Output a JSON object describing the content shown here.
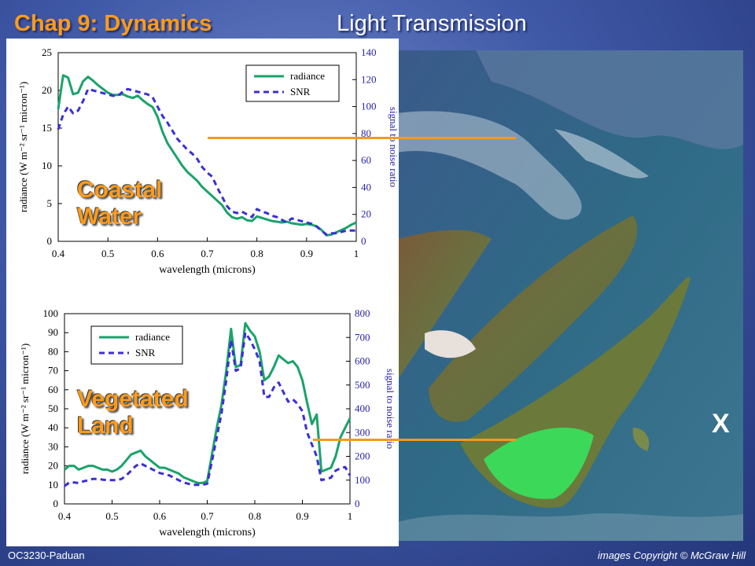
{
  "slide": {
    "title": "Chap 9: Dynamics",
    "subtitle": "Light Transmission",
    "footer_left": "OC3230-Paduan",
    "footer_right": "images Copyright © McGraw Hill",
    "map_marker": "X"
  },
  "colors": {
    "radiance": "#1aa36b",
    "snr": "#3b2fd6",
    "accent": "#ff9b1a",
    "pointer": "#f29a1e"
  },
  "chart_data": [
    {
      "type": "line",
      "overlay_label": [
        "Coastal",
        "Water"
      ],
      "xlabel": "wavelength (microns)",
      "ylabel_left": "radiance (W m⁻² sr⁻¹ micron⁻¹)",
      "ylabel_right": "signal to noise ratio",
      "xlim": [
        0.4,
        1.0
      ],
      "ylim_left": [
        0,
        25
      ],
      "ylim_right": [
        0,
        140
      ],
      "xticks": [
        0.4,
        0.5,
        0.6,
        0.7,
        0.8,
        0.9,
        1
      ],
      "xtick_labels": [
        "0.4",
        "0.5",
        "0.6",
        "0.7",
        "0.8",
        "0.9",
        "1"
      ],
      "yticks_left": [
        0,
        5,
        10,
        15,
        20,
        25
      ],
      "yticks_right": [
        0,
        20,
        40,
        60,
        80,
        100,
        120,
        140
      ],
      "legend_position": "top-right",
      "series": [
        {
          "name": "radiance",
          "axis": "left",
          "style": "solid",
          "x": [
            0.4,
            0.41,
            0.42,
            0.43,
            0.44,
            0.45,
            0.46,
            0.47,
            0.48,
            0.49,
            0.5,
            0.51,
            0.52,
            0.53,
            0.54,
            0.55,
            0.56,
            0.57,
            0.58,
            0.59,
            0.6,
            0.61,
            0.62,
            0.63,
            0.64,
            0.65,
            0.66,
            0.67,
            0.68,
            0.69,
            0.7,
            0.71,
            0.72,
            0.73,
            0.74,
            0.75,
            0.76,
            0.77,
            0.78,
            0.79,
            0.8,
            0.81,
            0.82,
            0.83,
            0.84,
            0.85,
            0.86,
            0.87,
            0.88,
            0.89,
            0.9,
            0.91,
            0.92,
            0.93,
            0.94,
            0.95,
            0.96,
            0.97,
            0.98,
            0.99,
            1.0
          ],
          "y": [
            17.5,
            22.0,
            21.7,
            19.5,
            19.7,
            21.2,
            21.8,
            21.3,
            20.7,
            20.2,
            19.7,
            19.4,
            19.4,
            19.5,
            19.2,
            19.0,
            19.3,
            18.7,
            18.2,
            17.8,
            16.5,
            14.5,
            13.0,
            12.0,
            11.0,
            10.0,
            9.2,
            8.6,
            8.0,
            7.2,
            6.6,
            6.0,
            5.4,
            4.8,
            3.8,
            3.2,
            3.0,
            3.2,
            2.8,
            2.7,
            3.3,
            3.1,
            2.9,
            2.7,
            2.6,
            2.5,
            2.6,
            2.4,
            2.3,
            2.2,
            2.3,
            2.2,
            2.0,
            1.5,
            0.8,
            0.9,
            1.2,
            1.5,
            1.8,
            2.2,
            2.5
          ]
        },
        {
          "name": "SNR",
          "axis": "right",
          "style": "dashed",
          "x": [
            0.4,
            0.41,
            0.42,
            0.43,
            0.44,
            0.45,
            0.46,
            0.47,
            0.48,
            0.49,
            0.5,
            0.51,
            0.52,
            0.53,
            0.54,
            0.55,
            0.56,
            0.57,
            0.58,
            0.59,
            0.6,
            0.61,
            0.62,
            0.63,
            0.64,
            0.65,
            0.66,
            0.67,
            0.68,
            0.69,
            0.7,
            0.71,
            0.72,
            0.73,
            0.74,
            0.75,
            0.76,
            0.77,
            0.78,
            0.79,
            0.8,
            0.81,
            0.82,
            0.83,
            0.84,
            0.85,
            0.86,
            0.87,
            0.88,
            0.89,
            0.9,
            0.91,
            0.92,
            0.93,
            0.94,
            0.95,
            0.96,
            0.97,
            0.98,
            0.99,
            1.0
          ],
          "y": [
            83,
            94,
            100,
            95,
            97,
            104,
            113,
            112,
            111,
            110,
            109,
            108,
            108,
            111,
            113,
            112,
            111,
            110,
            109,
            107,
            100,
            93,
            88,
            82,
            76,
            72,
            68,
            65,
            61,
            55,
            51,
            48,
            40,
            33,
            26,
            22,
            21,
            22,
            20,
            18,
            24,
            22,
            21,
            19,
            18,
            16,
            14,
            17,
            16,
            15,
            14,
            13,
            11,
            8,
            5,
            6,
            6,
            7,
            8,
            8,
            8
          ]
        }
      ]
    },
    {
      "type": "line",
      "overlay_label": [
        "Vegetated",
        "Land"
      ],
      "xlabel": "wavelength (microns)",
      "ylabel_left": "radiance (W m⁻² sr⁻¹ micron⁻¹)",
      "ylabel_right": "signal to noise ratio",
      "xlim": [
        0.4,
        1.0
      ],
      "ylim_left": [
        0,
        100
      ],
      "ylim_right": [
        0,
        800
      ],
      "xticks": [
        0.4,
        0.5,
        0.6,
        0.7,
        0.8,
        0.9,
        1
      ],
      "xtick_labels": [
        "0.4",
        "0.5",
        "0.6",
        "0.7",
        "0.8",
        "0.9",
        "1"
      ],
      "yticks_left": [
        0,
        10,
        20,
        30,
        40,
        50,
        60,
        70,
        80,
        90,
        100
      ],
      "yticks_right": [
        0,
        100,
        200,
        300,
        400,
        500,
        600,
        700,
        800
      ],
      "legend_position": "top-left",
      "series": [
        {
          "name": "radiance",
          "axis": "left",
          "style": "solid",
          "x": [
            0.4,
            0.41,
            0.42,
            0.43,
            0.44,
            0.45,
            0.46,
            0.47,
            0.48,
            0.49,
            0.5,
            0.51,
            0.52,
            0.53,
            0.54,
            0.55,
            0.56,
            0.57,
            0.58,
            0.59,
            0.6,
            0.61,
            0.62,
            0.63,
            0.64,
            0.65,
            0.66,
            0.67,
            0.68,
            0.69,
            0.7,
            0.71,
            0.72,
            0.73,
            0.74,
            0.75,
            0.76,
            0.77,
            0.78,
            0.79,
            0.8,
            0.81,
            0.82,
            0.83,
            0.84,
            0.85,
            0.86,
            0.87,
            0.88,
            0.89,
            0.9,
            0.91,
            0.92,
            0.93,
            0.94,
            0.95,
            0.96,
            0.97,
            0.98,
            0.99,
            1.0
          ],
          "y": [
            18,
            20,
            20,
            18,
            19,
            20,
            20,
            19,
            18,
            18,
            17,
            18,
            20,
            23,
            26,
            27,
            28,
            25,
            23,
            21,
            19,
            19,
            18,
            17,
            16,
            14,
            13,
            12,
            11,
            11,
            12,
            26,
            40,
            52,
            70,
            92,
            72,
            73,
            95,
            91,
            88,
            80,
            65,
            67,
            72,
            78,
            76,
            74,
            75,
            72,
            65,
            53,
            42,
            47,
            17,
            18,
            19,
            25,
            35,
            40,
            45
          ]
        },
        {
          "name": "SNR",
          "axis": "right",
          "style": "dashed",
          "x": [
            0.4,
            0.41,
            0.42,
            0.43,
            0.44,
            0.45,
            0.46,
            0.47,
            0.48,
            0.49,
            0.5,
            0.51,
            0.52,
            0.53,
            0.54,
            0.55,
            0.56,
            0.57,
            0.58,
            0.59,
            0.6,
            0.61,
            0.62,
            0.63,
            0.64,
            0.65,
            0.66,
            0.67,
            0.68,
            0.69,
            0.7,
            0.71,
            0.72,
            0.73,
            0.74,
            0.75,
            0.76,
            0.77,
            0.78,
            0.79,
            0.8,
            0.81,
            0.82,
            0.83,
            0.84,
            0.85,
            0.86,
            0.87,
            0.88,
            0.89,
            0.9,
            0.91,
            0.92,
            0.93,
            0.94,
            0.95,
            0.96,
            0.97,
            0.98,
            0.99,
            1.0
          ],
          "y": [
            75,
            90,
            90,
            88,
            95,
            100,
            105,
            105,
            102,
            100,
            100,
            100,
            105,
            120,
            140,
            160,
            170,
            160,
            150,
            140,
            130,
            125,
            120,
            110,
            100,
            90,
            85,
            80,
            80,
            80,
            85,
            180,
            280,
            380,
            520,
            690,
            560,
            570,
            720,
            690,
            650,
            600,
            450,
            450,
            490,
            510,
            470,
            430,
            440,
            420,
            390,
            300,
            250,
            200,
            100,
            105,
            110,
            140,
            150,
            155,
            120
          ]
        }
      ]
    }
  ]
}
